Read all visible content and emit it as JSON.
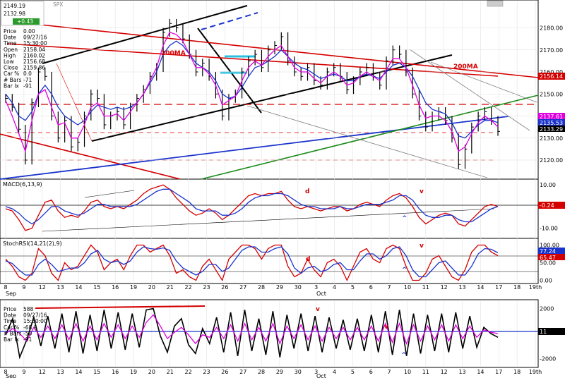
{
  "colors": {
    "price": "#000000",
    "blue": "#1a33cc",
    "magenta": "#e000e0",
    "red": "#d40000",
    "green": "#1a8a1a",
    "cyan": "#29c0e0",
    "gray": "#808080"
  },
  "header": {
    "label": "SPX",
    "info_labels": [
      "Price",
      "Date",
      "Time",
      "Open",
      "High",
      "Low",
      "Close",
      "Car %",
      "# Bars",
      "Bar Ix"
    ],
    "info_values": [
      "0.00",
      "09/27/16",
      "15:30:00",
      "2158.04",
      "2160.02",
      "2156.68",
      "2159.86",
      "0.0",
      "-71",
      "-91"
    ],
    "readouts": [
      "2149.19",
      "2132.98",
      "+0.43"
    ]
  },
  "chart_data": [
    {
      "type": "line",
      "panel": "price",
      "ylim": [
        2112,
        2192
      ],
      "ticks": [
        "2180.00",
        "2170.00",
        "2160.00",
        "2150.00",
        "2140.00",
        "2130.00",
        "2120.00"
      ],
      "tick_values": [
        2180,
        2170,
        2160,
        2150,
        2140,
        2130,
        2120
      ],
      "series": [
        {
          "values": [
            2148,
            2144,
            2134,
            2120,
            2146,
            2160,
            2158,
            2140,
            2130,
            2138,
            2126,
            2128,
            2140,
            2150,
            2148,
            2136,
            2140,
            2142,
            2136,
            2144,
            2148,
            2152,
            2158,
            2162,
            2178,
            2182,
            2180,
            2175,
            2168,
            2160,
            2164,
            2158,
            2150,
            2140,
            2148,
            2150,
            2160,
            2165,
            2168,
            2162,
            2170,
            2172,
            2176,
            2165,
            2160,
            2158,
            2162,
            2156,
            2154,
            2160,
            2162,
            2158,
            2152,
            2156,
            2160,
            2162,
            2158,
            2154,
            2165,
            2170,
            2168,
            2160,
            2150,
            2140,
            2135,
            2140,
            2142,
            2138,
            2130,
            2118,
            2125,
            2135,
            2140,
            2142,
            2138,
            2133
          ]
        },
        {
          "values": [
            2150,
            2146,
            2140,
            2138,
            2142,
            2150,
            2154,
            2150,
            2144,
            2140,
            2138,
            2136,
            2138,
            2142,
            2145,
            2144,
            2143,
            2144,
            2143,
            2144,
            2146,
            2150,
            2155,
            2160,
            2168,
            2172,
            2174,
            2172,
            2168,
            2164,
            2162,
            2160,
            2156,
            2150,
            2148,
            2149,
            2153,
            2158,
            2162,
            2163,
            2165,
            2167,
            2170,
            2167,
            2164,
            2162,
            2161,
            2159,
            2157,
            2158,
            2159,
            2158,
            2156,
            2156,
            2158,
            2159,
            2158,
            2157,
            2160,
            2163,
            2164,
            2162,
            2158,
            2152,
            2146,
            2143,
            2142,
            2141,
            2137,
            2131,
            2130,
            2133,
            2136,
            2138,
            2138,
            2137
          ]
        },
        {
          "values": [
            2147,
            2140,
            2132,
            2124,
            2138,
            2150,
            2152,
            2144,
            2136,
            2137,
            2130,
            2130,
            2136,
            2144,
            2146,
            2140,
            2140,
            2141,
            2138,
            2142,
            2146,
            2150,
            2156,
            2162,
            2172,
            2178,
            2177,
            2174,
            2168,
            2162,
            2162,
            2159,
            2154,
            2145,
            2147,
            2149,
            2156,
            2162,
            2165,
            2163,
            2167,
            2170,
            2172,
            2167,
            2162,
            2160,
            2160,
            2157,
            2155,
            2158,
            2160,
            2158,
            2154,
            2155,
            2158,
            2160,
            2158,
            2156,
            2161,
            2166,
            2166,
            2162,
            2154,
            2145,
            2139,
            2140,
            2140,
            2138,
            2133,
            2124,
            2126,
            2132,
            2137,
            2140,
            2138,
            2135
          ]
        }
      ],
      "annotations": [
        "200MA",
        "200MA"
      ],
      "price_tags": [
        "2156.14",
        "2137.61",
        "2135.53",
        "2133.29"
      ]
    },
    {
      "type": "line",
      "panel": "MACD",
      "title": "MACD(6,13,9)",
      "ylim": [
        -14,
        12
      ],
      "ticks": [
        "10.00",
        "-10.00"
      ],
      "tick_values": [
        10,
        -10
      ],
      "series": [
        {
          "values": [
            -1,
            -2,
            -6,
            -11,
            -10,
            -4,
            2,
            3,
            -2,
            -5,
            -4,
            -5,
            -2,
            2,
            3,
            0,
            -1,
            0,
            -1,
            1,
            3,
            6,
            8,
            9,
            10,
            8,
            4,
            1,
            -2,
            -4,
            -3,
            -1,
            -3,
            -6,
            -4,
            -1,
            2,
            5,
            6,
            5,
            6,
            6,
            7,
            3,
            0,
            -1,
            0,
            -1,
            -2,
            -1,
            0,
            0,
            -2,
            -1,
            1,
            2,
            1,
            0,
            3,
            5,
            6,
            4,
            0,
            -5,
            -8,
            -6,
            -4,
            -3,
            -4,
            -8,
            -9,
            -6,
            -3,
            0,
            1,
            0
          ]
        },
        {
          "values": [
            0,
            -1,
            -3,
            -6,
            -8,
            -6,
            -3,
            0,
            0,
            -2,
            -3,
            -4,
            -3,
            -1,
            1,
            1,
            0,
            0,
            0,
            0,
            1,
            3,
            5,
            7,
            8,
            8,
            6,
            4,
            2,
            -1,
            -2,
            -2,
            -2,
            -4,
            -4,
            -3,
            -1,
            2,
            4,
            5,
            5,
            6,
            6,
            5,
            3,
            1,
            0,
            0,
            -1,
            -1,
            -1,
            0,
            -1,
            -1,
            0,
            1,
            1,
            1,
            2,
            3,
            5,
            5,
            3,
            -1,
            -4,
            -5,
            -5,
            -4,
            -4,
            -6,
            -7,
            -7,
            -5,
            -3,
            -1,
            0
          ]
        }
      ],
      "annotations": [
        "d",
        "v",
        "^"
      ],
      "price_tags": [
        "-0.24"
      ]
    },
    {
      "type": "line",
      "panel": "StochRSI",
      "title": "StochRSI(14,21(2),9)",
      "ylim": [
        -5,
        115
      ],
      "ticks": [
        "100.00",
        "50.00",
        "0.00"
      ],
      "tick_values": [
        100,
        50,
        0
      ],
      "series": [
        {
          "values": [
            60,
            40,
            10,
            0,
            20,
            90,
            70,
            20,
            0,
            50,
            30,
            40,
            70,
            100,
            80,
            30,
            50,
            60,
            30,
            70,
            100,
            100,
            80,
            90,
            100,
            70,
            20,
            30,
            10,
            0,
            40,
            60,
            30,
            0,
            60,
            80,
            100,
            100,
            90,
            60,
            90,
            100,
            100,
            40,
            10,
            20,
            60,
            30,
            10,
            50,
            60,
            40,
            0,
            40,
            80,
            90,
            60,
            50,
            90,
            100,
            90,
            40,
            0,
            0,
            20,
            60,
            70,
            40,
            10,
            0,
            30,
            80,
            100,
            100,
            80,
            70
          ]
        },
        {
          "values": [
            55,
            48,
            30,
            15,
            15,
            45,
            60,
            45,
            25,
            30,
            35,
            35,
            50,
            75,
            85,
            60,
            50,
            55,
            45,
            55,
            80,
            95,
            90,
            88,
            92,
            85,
            55,
            35,
            25,
            15,
            25,
            45,
            45,
            25,
            35,
            60,
            85,
            95,
            95,
            80,
            80,
            90,
            95,
            75,
            35,
            20,
            35,
            40,
            25,
            30,
            45,
            50,
            30,
            30,
            55,
            75,
            75,
            60,
            70,
            90,
            95,
            70,
            30,
            10,
            10,
            30,
            50,
            55,
            35,
            15,
            15,
            40,
            75,
            90,
            88,
            78
          ]
        }
      ],
      "annotations": [
        "d",
        "v",
        "^"
      ],
      "price_tags": [
        "77.24",
        "65.47"
      ]
    },
    {
      "type": "line",
      "panel": "oscillator",
      "ylim": [
        -2600,
        2600
      ],
      "ticks": [
        "2000",
        "-2000"
      ],
      "tick_values": [
        2000,
        -2000
      ],
      "series": [
        {
          "values": [
            -100,
            1200,
            -1900,
            -500,
            1300,
            -1000,
            1400,
            -1200,
            1600,
            -1500,
            1800,
            -1600,
            1500,
            -1400,
            1900,
            -1200,
            1700,
            -1300,
            1600,
            -1100,
            1900,
            2000,
            -200,
            -1500,
            600,
            1200,
            -900,
            -1600,
            400,
            -800,
            1300,
            -1500,
            1700,
            -1800,
            1900,
            -1400,
            1200,
            -1700,
            1800,
            -1900,
            1500,
            -1200,
            1600,
            -1400,
            1400,
            -1500,
            1300,
            -1200,
            1100,
            -1300,
            1200,
            -1400,
            1500,
            -1500,
            1800,
            -1700,
            1900,
            -1800,
            1600,
            -1600,
            1500,
            -1400,
            1600,
            -1500,
            1700,
            -1200,
            1400,
            -1100,
            500,
            0,
            -300
          ]
        },
        {
          "values": [
            0,
            400,
            0,
            -600,
            500,
            -300,
            600,
            -400,
            700,
            -500,
            800,
            -600,
            600,
            -500,
            800,
            -300,
            700,
            -400,
            600,
            -300,
            900,
            1500,
            600,
            -400,
            100,
            500,
            -100,
            -800,
            -100,
            -300,
            500,
            -400,
            700,
            -600,
            800,
            -500,
            500,
            -600,
            800,
            -800,
            600,
            -400,
            700,
            -500,
            600,
            -600,
            500,
            -400,
            500,
            -500,
            500,
            -500,
            600,
            -600,
            800,
            -700,
            800,
            -800,
            700,
            -600,
            600,
            -500,
            700,
            -600,
            700,
            -400,
            600,
            -300,
            300,
            100,
            0
          ]
        }
      ],
      "annotations": [
        "v",
        "v",
        "^"
      ],
      "price_tags": [
        "11"
      ]
    }
  ],
  "subpanel_info": {
    "labels": [
      "Price",
      "Date",
      "Time",
      "Car %",
      "# Bars",
      "Bar Ix"
    ],
    "values": [
      "588",
      "09/27/16",
      "15:30:00",
      "-68.9",
      "-50",
      "-91"
    ]
  },
  "x_axis": {
    "labels": [
      "8",
      "9",
      "12",
      "13",
      "14",
      "15",
      "16",
      "19",
      "20",
      "21",
      "22",
      "23",
      "26",
      "27",
      "28",
      "29",
      "30",
      "3",
      "4",
      "5",
      "6",
      "7",
      "10",
      "11",
      "12",
      "13",
      "14",
      "17",
      "18",
      "19th"
    ],
    "months": [
      "Sep",
      "Oct"
    ]
  }
}
